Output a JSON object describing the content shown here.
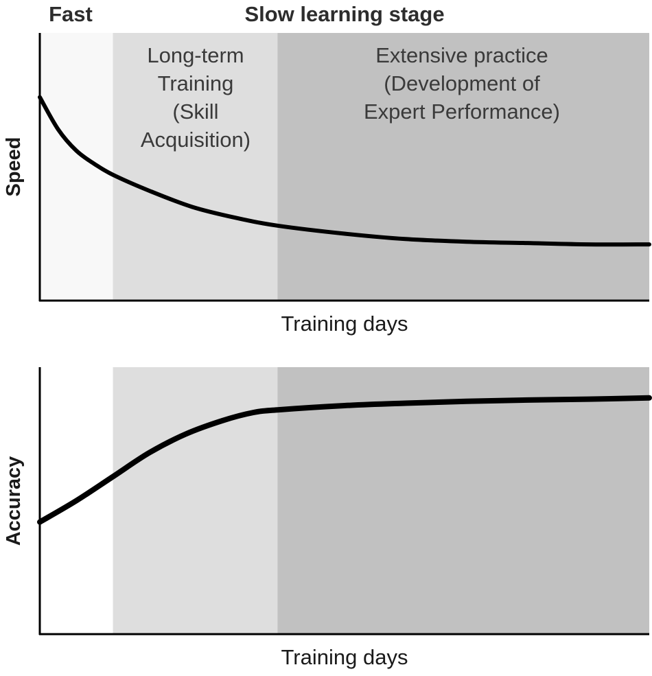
{
  "header": {
    "fast_label": "Fast",
    "slow_label": "Slow learning stage"
  },
  "chart_data": [
    {
      "type": "line",
      "ylabel": "Speed",
      "xlabel": "Training days",
      "grid": false,
      "regions": [
        {
          "name": "fast",
          "lines": [],
          "color": "#f8f8f8",
          "x_range": [
            0,
            0.12
          ]
        },
        {
          "name": "long-term-training",
          "lines": [
            "Long-term",
            "Training",
            "(Skill",
            "Acquisition)"
          ],
          "color": "#dedede",
          "x_range": [
            0.12,
            0.39
          ]
        },
        {
          "name": "extensive-practice",
          "lines": [
            "Extensive practice",
            "(Development of",
            "Expert Performance)"
          ],
          "color": "#c1c1c1",
          "x_range": [
            0.39,
            1.0
          ]
        }
      ],
      "series": [
        {
          "x": [
            0,
            0.03,
            0.06,
            0.09,
            0.12,
            0.18,
            0.25,
            0.32,
            0.39,
            0.5,
            0.6,
            0.7,
            0.8,
            0.9,
            1.0
          ],
          "y": [
            0.76,
            0.64,
            0.56,
            0.51,
            0.47,
            0.41,
            0.35,
            0.31,
            0.28,
            0.25,
            0.23,
            0.22,
            0.215,
            0.21,
            0.21
          ]
        }
      ]
    },
    {
      "type": "line",
      "ylabel": "Accuracy",
      "xlabel": "Training days",
      "grid": false,
      "regions": [
        {
          "name": "fast",
          "lines": [],
          "color": "#ffffff",
          "x_range": [
            0,
            0.12
          ]
        },
        {
          "name": "long-term-training",
          "lines": [],
          "color": "#dedede",
          "x_range": [
            0.12,
            0.39
          ]
        },
        {
          "name": "extensive-practice",
          "lines": [],
          "color": "#c1c1c1",
          "x_range": [
            0.39,
            1.0
          ]
        }
      ],
      "series": [
        {
          "x": [
            0,
            0.06,
            0.12,
            0.18,
            0.24,
            0.3,
            0.35,
            0.39,
            0.5,
            0.6,
            0.7,
            0.8,
            0.9,
            1.0
          ],
          "y": [
            0.42,
            0.5,
            0.59,
            0.68,
            0.75,
            0.8,
            0.83,
            0.84,
            0.856,
            0.865,
            0.872,
            0.877,
            0.88,
            0.885
          ]
        }
      ]
    }
  ]
}
